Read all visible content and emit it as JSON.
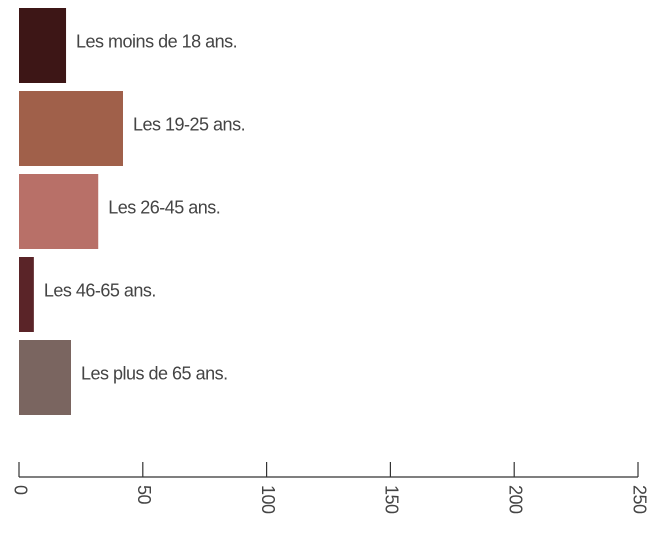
{
  "chart_data": {
    "type": "bar",
    "orientation": "horizontal",
    "categories": [
      "Les moins de 18 ans.",
      "Les 19-25 ans.",
      "Les 26-45 ans.",
      "Les 46-65 ans.",
      "Les plus de 65 ans."
    ],
    "values": [
      19,
      42,
      32,
      6,
      21
    ],
    "colors": [
      "#3d1616",
      "#a0604a",
      "#b87068",
      "#5a2428",
      "#7a6560"
    ],
    "xlim": [
      0,
      250
    ],
    "xticks": [
      0,
      50,
      100,
      150,
      200,
      250
    ],
    "grid": false
  }
}
